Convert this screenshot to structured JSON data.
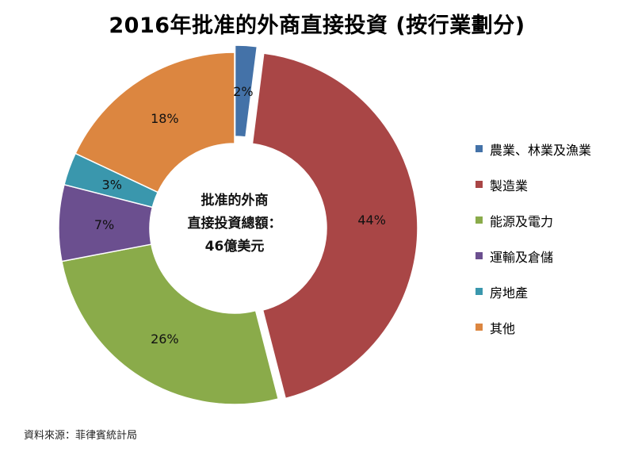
{
  "title": "2016年批准的外商直接投資 (按行業劃分)",
  "source": "資料來源：菲律賓統計局",
  "center_label": {
    "line1": "批准的外商",
    "line2": "直接投資總額：",
    "line3": "46億美元"
  },
  "chart_data": {
    "type": "pie",
    "style": "donut",
    "title": "2016年批准的外商直接投資 (按行業劃分)",
    "categories": [
      "農業、林業及漁業",
      "製造業",
      "能源及電力",
      "運輸及倉儲",
      "房地產",
      "其他"
    ],
    "values": [
      2,
      44,
      26,
      7,
      3,
      18
    ],
    "value_labels": [
      "2%",
      "44%",
      "26%",
      "7%",
      "3%",
      "18%"
    ],
    "colors": [
      "#4472a8",
      "#a94646",
      "#8aab4a",
      "#6b4f8f",
      "#3a97ad",
      "#dc8640"
    ],
    "exploded": [
      "農業、林業及漁業",
      "製造業"
    ],
    "legend_position": "right"
  }
}
